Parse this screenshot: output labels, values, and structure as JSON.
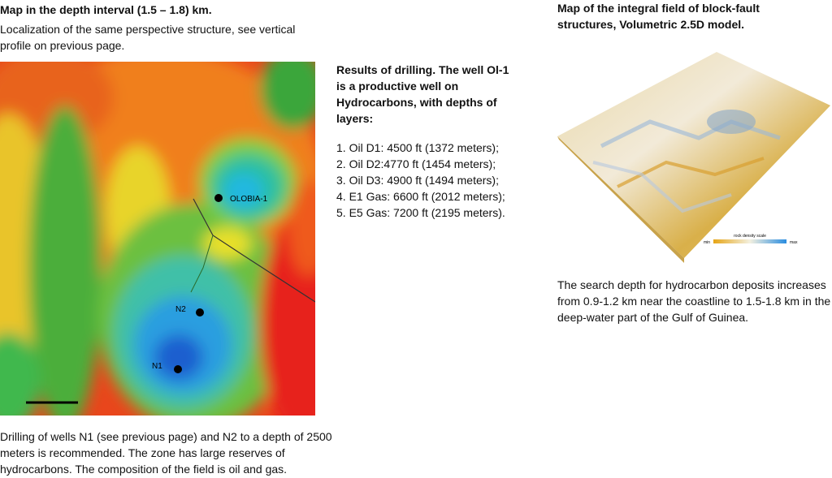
{
  "left": {
    "title": "Map in the depth interval (1.5 – 1.8) km.",
    "subtitle": "Localization of the same perspective structure, see vertical profile on previous page.",
    "map_labels": {
      "olobia": "OLOBIA-1",
      "n2": "N2",
      "n1": "N1"
    },
    "caption": "Drilling of wells N1 (see previous page) and N2 to a depth of 2500 meters is recommended. The zone has large reserves of hydrocarbons. The composition of the field is oil and gas."
  },
  "middle": {
    "heading": "Results of drilling. The well Ol-1 is a productive well on Hydrocarbons, with depths of layers:",
    "items": [
      "1. Oil D1: 4500 ft (1372 meters);",
      "2. Oil D2:4770 ft (1454 meters);",
      "3. Oil D3: 4900 ft (1494 meters);",
      "4. E1 Gas: 6600 ft (2012 meters);",
      "5. E5 Gas: 7200 ft (2195 meters)."
    ]
  },
  "right": {
    "title": "Map of the integral field of block-fault structures, Volumetric 2.5D model.",
    "legend": {
      "title": "rock density scale",
      "min": "min",
      "max": "max"
    },
    "caption": "The search depth for hydrocarbon deposits increases from 0.9-1.2 km near the coastline to 1.5-1.8 km in the deep-water part of the Gulf of Guinea."
  }
}
